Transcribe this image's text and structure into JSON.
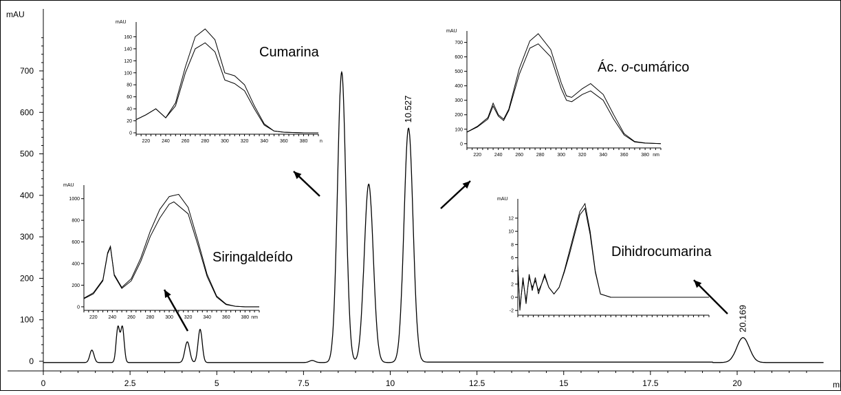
{
  "chart_data": [
    {
      "type": "line",
      "role": "chromatogram",
      "ylabel": "mAU",
      "xlabel": "min",
      "xlim": [
        0,
        22.5
      ],
      "ylim": [
        -20,
        800
      ],
      "x_ticks": [
        "0",
        "2.5",
        "5",
        "7.5",
        "10",
        "12.5",
        "15",
        "17.5",
        "20"
      ],
      "y_ticks": [
        "0",
        "100",
        "200",
        "300",
        "400",
        "500",
        "600",
        "700"
      ],
      "peaks": [
        {
          "x": 1.4,
          "height": 30,
          "width": 0.06
        },
        {
          "x": 2.15,
          "height": 85,
          "width": 0.05
        },
        {
          "x": 2.28,
          "height": 85,
          "width": 0.05
        },
        {
          "x": 4.15,
          "height": 50,
          "width": 0.07
        },
        {
          "x": 4.52,
          "height": 80,
          "width": 0.06
        },
        {
          "x": 7.75,
          "height": 5,
          "width": 0.08
        },
        {
          "x": 8.6,
          "height": 700,
          "width": 0.12
        },
        {
          "x": 9.38,
          "height": 430,
          "width": 0.13
        },
        {
          "x": 10.527,
          "height": 565,
          "width": 0.13
        },
        {
          "x": 20.169,
          "height": 60,
          "width": 0.18
        }
      ],
      "peak_labels": [
        {
          "x": 10.527,
          "text": "10.527"
        },
        {
          "x": 20.169,
          "text": "20.169"
        }
      ]
    },
    {
      "type": "line",
      "role": "uv-spectrum",
      "compound": "Cumarina",
      "ylabel": "mAU",
      "xlabel": "n",
      "xlim": [
        210,
        395
      ],
      "ylim": [
        0,
        180
      ],
      "x_ticks": [
        "220",
        "240",
        "260",
        "280",
        "300",
        "320",
        "340",
        "360",
        "380"
      ],
      "y_ticks": [
        "0",
        "20",
        "40",
        "60",
        "80",
        "100",
        "120",
        "140",
        "160"
      ],
      "series": [
        {
          "x": [
            210,
            220,
            230,
            240,
            250,
            260,
            270,
            280,
            290,
            300,
            310,
            320,
            330,
            340,
            350,
            360,
            380,
            395
          ],
          "values": [
            22,
            30,
            40,
            25,
            50,
            110,
            160,
            173,
            155,
            100,
            95,
            80,
            45,
            15,
            3,
            1,
            0,
            0
          ]
        },
        {
          "x": [
            210,
            220,
            230,
            240,
            250,
            260,
            270,
            280,
            290,
            300,
            310,
            320,
            330,
            340,
            350,
            360,
            380,
            395
          ],
          "values": [
            22,
            30,
            40,
            25,
            45,
            100,
            140,
            150,
            135,
            88,
            82,
            70,
            40,
            13,
            3,
            1,
            0,
            0
          ]
        }
      ]
    },
    {
      "type": "line",
      "role": "uv-spectrum",
      "compound": "Ác. o-cumárico",
      "compound_prefix": "Ác. ",
      "compound_italic": "o",
      "compound_suffix": "-cumárico",
      "ylabel": "mAU",
      "xlabel": "nm",
      "xlim": [
        210,
        395
      ],
      "ylim": [
        -20,
        760
      ],
      "x_ticks": [
        "220",
        "240",
        "260",
        "280",
        "300",
        "320",
        "340",
        "360",
        "380",
        "nm"
      ],
      "y_ticks": [
        "0",
        "100",
        "200",
        "300",
        "400",
        "500",
        "600",
        "700"
      ],
      "series": [
        {
          "x": [
            210,
            220,
            230,
            235,
            240,
            245,
            250,
            260,
            270,
            278,
            290,
            300,
            305,
            310,
            320,
            328,
            340,
            350,
            360,
            370,
            380,
            395
          ],
          "values": [
            80,
            120,
            180,
            280,
            200,
            170,
            240,
            520,
            710,
            760,
            650,
            420,
            330,
            320,
            380,
            415,
            340,
            200,
            70,
            15,
            5,
            0
          ]
        },
        {
          "x": [
            210,
            220,
            230,
            235,
            240,
            245,
            250,
            260,
            270,
            278,
            290,
            300,
            305,
            310,
            320,
            328,
            340,
            350,
            360,
            370,
            380,
            395
          ],
          "values": [
            80,
            115,
            170,
            260,
            190,
            160,
            230,
            480,
            660,
            690,
            600,
            380,
            300,
            290,
            340,
            365,
            300,
            170,
            60,
            12,
            4,
            0
          ]
        }
      ]
    },
    {
      "type": "line",
      "role": "uv-spectrum",
      "compound": "Siringaldeído",
      "ylabel": "mAU",
      "xlabel": "nm",
      "xlim": [
        210,
        395
      ],
      "ylim": [
        -20,
        1100
      ],
      "x_ticks": [
        "220",
        "240",
        "260",
        "280",
        "300",
        "320",
        "340",
        "360",
        "380",
        "nm"
      ],
      "y_ticks": [
        "0",
        "200",
        "400",
        "600",
        "800",
        "1000"
      ],
      "series": [
        {
          "x": [
            210,
            220,
            230,
            235,
            238,
            242,
            250,
            260,
            270,
            280,
            290,
            300,
            310,
            320,
            330,
            340,
            350,
            360,
            370,
            380,
            395
          ],
          "values": [
            80,
            130,
            250,
            500,
            560,
            300,
            180,
            260,
            450,
            700,
            900,
            1020,
            1040,
            920,
            620,
            300,
            100,
            25,
            5,
            0,
            0
          ]
        },
        {
          "x": [
            210,
            220,
            230,
            235,
            238,
            242,
            250,
            260,
            270,
            280,
            290,
            300,
            305,
            320,
            330,
            340,
            350,
            360,
            370,
            380,
            395
          ],
          "values": [
            75,
            120,
            240,
            490,
            550,
            290,
            170,
            240,
            420,
            650,
            820,
            950,
            970,
            860,
            580,
            280,
            90,
            20,
            5,
            0,
            0
          ]
        }
      ]
    },
    {
      "type": "line",
      "role": "uv-spectrum",
      "compound": "Dihidrocumarina",
      "ylabel": "mAU",
      "xlabel": "",
      "xlim": [
        210,
        395
      ],
      "ylim": [
        -2.5,
        14.5
      ],
      "y_ticks": [
        "-2",
        "0",
        "2",
        "4",
        "6",
        "8",
        "10",
        "12"
      ],
      "series": [
        {
          "x": [
            210,
            212,
            215,
            218,
            221,
            224,
            227,
            230,
            233,
            236,
            240,
            245,
            250,
            255,
            260,
            265,
            270,
            275,
            280,
            285,
            290,
            300,
            320,
            340,
            360,
            380,
            395
          ],
          "values": [
            5,
            -2,
            3,
            -1,
            3.5,
            1,
            3,
            0.5,
            2,
            3.5,
            1.5,
            0.5,
            1.5,
            4,
            7,
            10,
            13,
            14.2,
            10,
            4,
            0.5,
            0,
            0,
            0,
            0,
            0,
            0
          ]
        },
        {
          "x": [
            210,
            212,
            215,
            218,
            221,
            224,
            227,
            230,
            233,
            236,
            240,
            245,
            250,
            255,
            260,
            265,
            270,
            275,
            280,
            285,
            290,
            300,
            320,
            340,
            360,
            380,
            395
          ],
          "values": [
            4.5,
            -1.5,
            2.5,
            -0.5,
            3,
            1.5,
            2.5,
            1,
            2,
            3.2,
            1.5,
            0.5,
            1.5,
            3.8,
            6.5,
            9.5,
            12.5,
            13.5,
            9.5,
            3.8,
            0.5,
            0,
            0,
            0,
            0,
            0,
            0
          ]
        }
      ]
    }
  ]
}
